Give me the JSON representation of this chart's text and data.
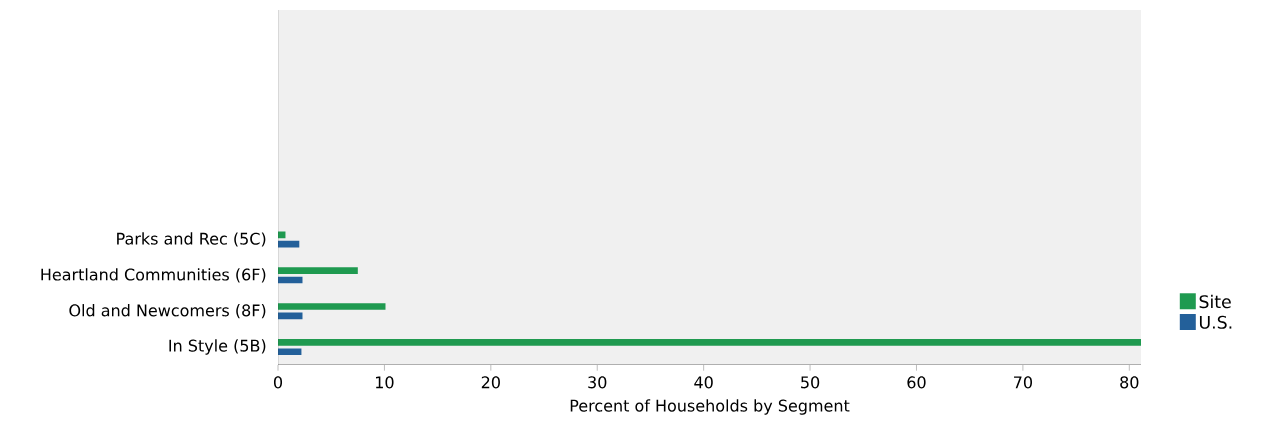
{
  "chart_data": {
    "type": "bar",
    "orientation": "horizontal",
    "xlabel": "Percent of Households by Segment",
    "categories": [
      null,
      null,
      null,
      null,
      null,
      null,
      "Parks and Rec (5C)",
      "Heartland Communities (6F)",
      "Old and Newcomers (8F)",
      "In Style (5B)"
    ],
    "series": [
      {
        "name": "Site",
        "color": "#1f9a50",
        "values": [
          null,
          null,
          null,
          null,
          null,
          null,
          0.7,
          7.5,
          10.1,
          81.1
        ]
      },
      {
        "name": "U.S.",
        "color": "#23609a",
        "values": [
          null,
          null,
          null,
          null,
          null,
          null,
          2.0,
          2.3,
          2.3,
          2.2
        ]
      }
    ],
    "xlim": [
      0,
      81.1
    ],
    "xticks": [
      0,
      10,
      20,
      30,
      40,
      50,
      60,
      70,
      80
    ],
    "grid": false,
    "legend": "right"
  }
}
